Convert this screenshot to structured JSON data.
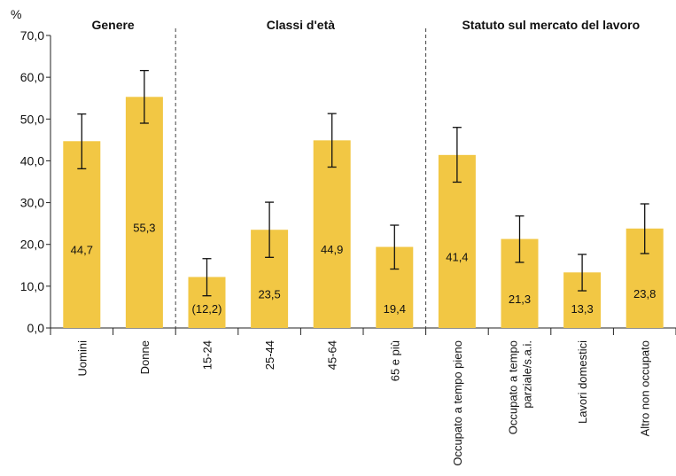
{
  "chart_data": {
    "type": "bar",
    "ylabel": "%",
    "ylim": [
      0,
      70
    ],
    "yticks": [
      "0,0",
      "10,0",
      "20,0",
      "30,0",
      "40,0",
      "50,0",
      "60,0",
      "70,0"
    ],
    "bar_color": "#f2c744",
    "groups": [
      {
        "title": "Genere",
        "start": 0,
        "end": 1
      },
      {
        "title": "Classi d'età",
        "start": 2,
        "end": 5
      },
      {
        "title": "Statuto sul mercato del lavoro",
        "start": 6,
        "end": 9
      }
    ],
    "categories": [
      [
        "Uomini"
      ],
      [
        "Donne"
      ],
      [
        "15-24"
      ],
      [
        "25-44"
      ],
      [
        "45-64"
      ],
      [
        "65 e più"
      ],
      [
        "Occupato a tempo pieno"
      ],
      [
        "Occupato a tempo",
        "parziale/s.a.i."
      ],
      [
        "Lavori domestici"
      ],
      [
        "Altro non occupato"
      ]
    ],
    "values": [
      44.7,
      55.3,
      12.2,
      23.5,
      44.9,
      19.4,
      41.4,
      21.3,
      13.3,
      23.8
    ],
    "data_labels": [
      "44,7",
      "55,3",
      "(12,2)",
      "23,5",
      "44,9",
      "19,4",
      "41,4",
      "21,3",
      "13,3",
      "23,8"
    ],
    "ci_low": [
      38.1,
      49.0,
      7.7,
      16.9,
      38.5,
      14.1,
      34.9,
      15.7,
      8.9,
      17.8
    ],
    "ci_high": [
      51.2,
      61.6,
      16.6,
      30.1,
      51.3,
      24.6,
      48.0,
      26.8,
      17.6,
      29.7
    ]
  }
}
